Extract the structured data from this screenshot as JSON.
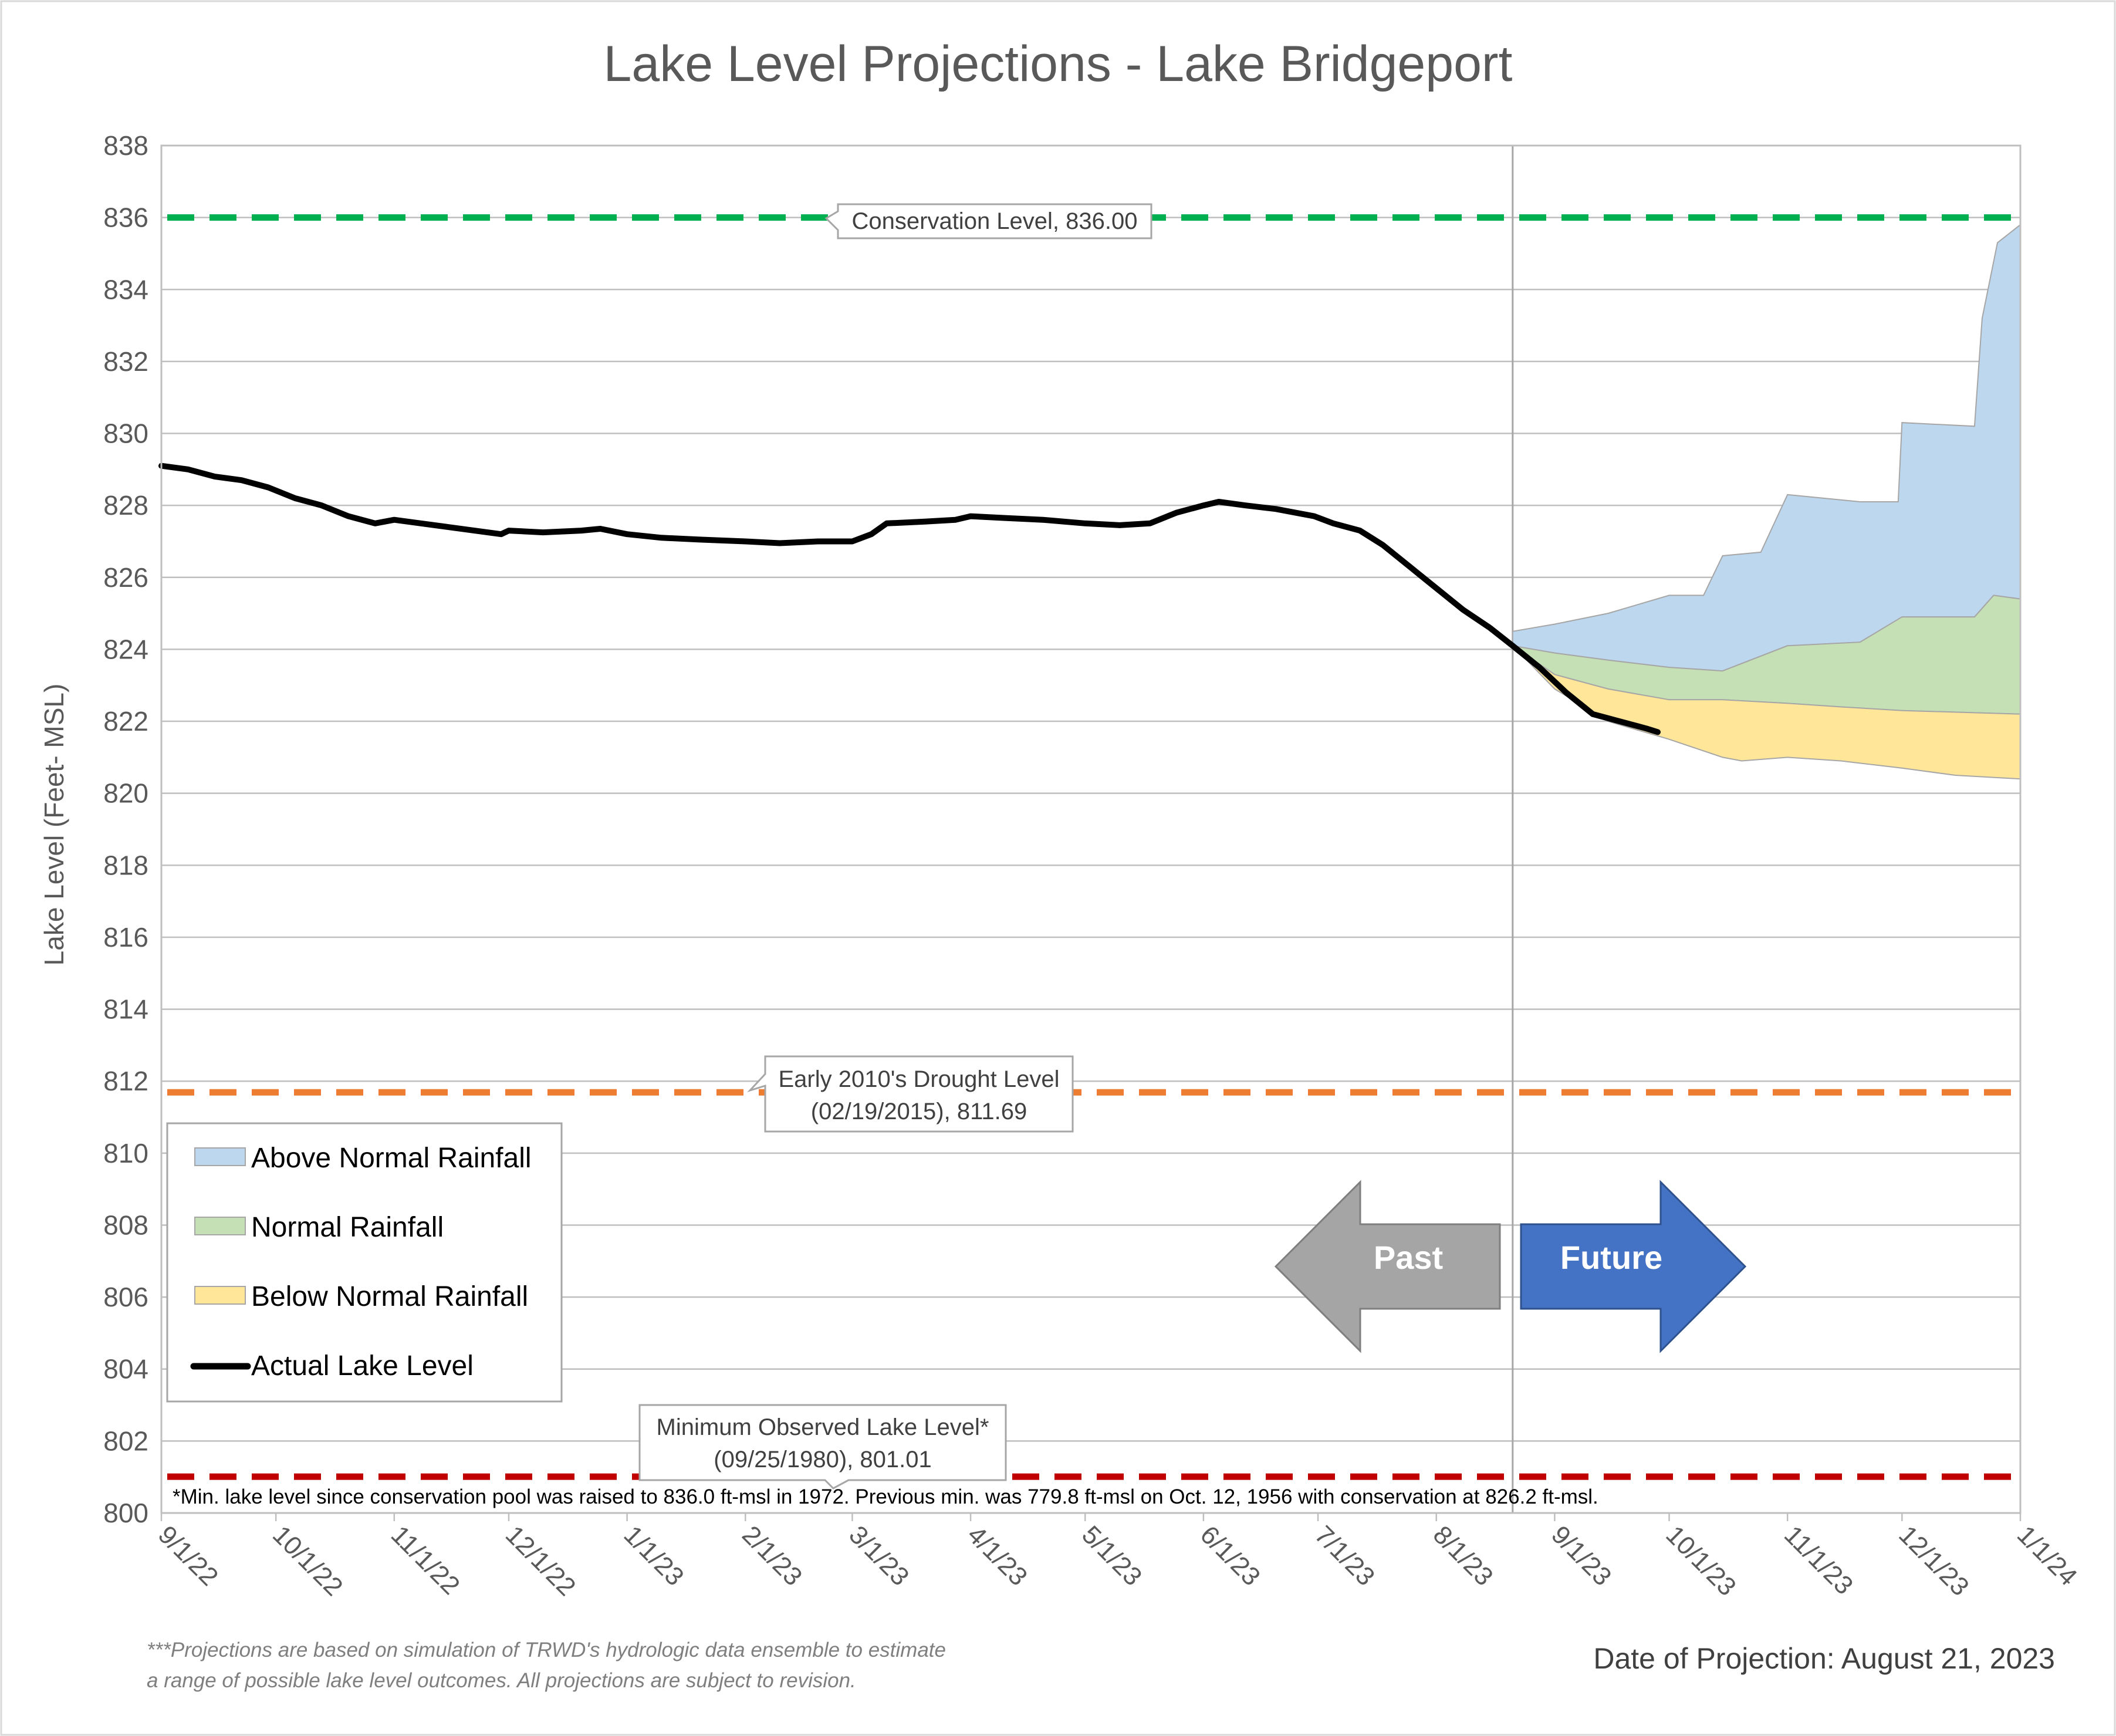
{
  "colors": {
    "above": "#bdd7ee",
    "normal": "#c5e0b4",
    "below": "#ffe699",
    "actual": "#000000",
    "conservation": "#00b050",
    "drought": "#ed7d31",
    "minimum": "#c00000",
    "past_arrow": "#a5a5a5",
    "future_arrow": "#4472c4",
    "grid": "#bfbfbf"
  },
  "chart_data": {
    "type": "area",
    "title": "Lake Level Projections - Lake Bridgeport",
    "xlabel": "",
    "ylabel": "Lake Level (Feet- MSL)",
    "ylim": [
      800,
      838
    ],
    "xlim": [
      "2022-09-01",
      "2024-01-01"
    ],
    "grid": true,
    "legend_position": "left",
    "y_ticks": [
      "800",
      "802",
      "804",
      "806",
      "808",
      "810",
      "812",
      "814",
      "816",
      "818",
      "820",
      "822",
      "824",
      "826",
      "828",
      "830",
      "832",
      "834",
      "836",
      "838"
    ],
    "x_ticks": [
      {
        "date": "2022-09-01",
        "label": "9/1/22"
      },
      {
        "date": "2022-10-01",
        "label": "10/1/22"
      },
      {
        "date": "2022-11-01",
        "label": "11/1/22"
      },
      {
        "date": "2022-12-01",
        "label": "12/1/22"
      },
      {
        "date": "2023-01-01",
        "label": "1/1/23"
      },
      {
        "date": "2023-02-01",
        "label": "2/1/23"
      },
      {
        "date": "2023-03-01",
        "label": "3/1/23"
      },
      {
        "date": "2023-04-01",
        "label": "4/1/23"
      },
      {
        "date": "2023-05-01",
        "label": "5/1/23"
      },
      {
        "date": "2023-06-01",
        "label": "6/1/23"
      },
      {
        "date": "2023-07-01",
        "label": "7/1/23"
      },
      {
        "date": "2023-08-01",
        "label": "8/1/23"
      },
      {
        "date": "2023-09-01",
        "label": "9/1/23"
      },
      {
        "date": "2023-10-01",
        "label": "10/1/23"
      },
      {
        "date": "2023-11-01",
        "label": "11/1/23"
      },
      {
        "date": "2023-12-01",
        "label": "12/1/23"
      },
      {
        "date": "2024-01-01",
        "label": "1/1/24"
      }
    ],
    "projection_start": "2023-08-21",
    "actual_level": {
      "name": "Actual Lake Level",
      "points": [
        [
          "2022-09-01",
          829.1
        ],
        [
          "2022-09-08",
          829.0
        ],
        [
          "2022-09-15",
          828.8
        ],
        [
          "2022-09-22",
          828.7
        ],
        [
          "2022-09-29",
          828.5
        ],
        [
          "2022-10-06",
          828.2
        ],
        [
          "2022-10-13",
          828.0
        ],
        [
          "2022-10-20",
          827.7
        ],
        [
          "2022-10-27",
          827.5
        ],
        [
          "2022-11-01",
          827.6
        ],
        [
          "2022-11-08",
          827.5
        ],
        [
          "2022-11-15",
          827.4
        ],
        [
          "2022-11-22",
          827.3
        ],
        [
          "2022-11-29",
          827.2
        ],
        [
          "2022-12-01",
          827.3
        ],
        [
          "2022-12-10",
          827.25
        ],
        [
          "2022-12-20",
          827.3
        ],
        [
          "2022-12-25",
          827.35
        ],
        [
          "2023-01-01",
          827.2
        ],
        [
          "2023-01-10",
          827.1
        ],
        [
          "2023-01-20",
          827.05
        ],
        [
          "2023-02-01",
          827.0
        ],
        [
          "2023-02-10",
          826.95
        ],
        [
          "2023-02-20",
          827.0
        ],
        [
          "2023-03-01",
          827.0
        ],
        [
          "2023-03-06",
          827.2
        ],
        [
          "2023-03-10",
          827.5
        ],
        [
          "2023-03-20",
          827.55
        ],
        [
          "2023-03-28",
          827.6
        ],
        [
          "2023-04-01",
          827.7
        ],
        [
          "2023-04-10",
          827.65
        ],
        [
          "2023-04-20",
          827.6
        ],
        [
          "2023-05-01",
          827.5
        ],
        [
          "2023-05-10",
          827.45
        ],
        [
          "2023-05-18",
          827.5
        ],
        [
          "2023-05-25",
          827.8
        ],
        [
          "2023-06-01",
          828.0
        ],
        [
          "2023-06-05",
          828.1
        ],
        [
          "2023-06-12",
          828.0
        ],
        [
          "2023-06-20",
          827.9
        ],
        [
          "2023-06-30",
          827.7
        ],
        [
          "2023-07-05",
          827.5
        ],
        [
          "2023-07-12",
          827.3
        ],
        [
          "2023-07-18",
          826.9
        ],
        [
          "2023-07-25",
          826.3
        ],
        [
          "2023-08-01",
          825.7
        ],
        [
          "2023-08-08",
          825.1
        ],
        [
          "2023-08-15",
          824.6
        ],
        [
          "2023-08-21",
          824.1
        ],
        [
          "2023-08-28",
          823.5
        ],
        [
          "2023-09-04",
          822.8
        ],
        [
          "2023-09-11",
          822.2
        ],
        [
          "2023-09-18",
          822.0
        ],
        [
          "2023-09-25",
          821.8
        ],
        [
          "2023-09-28",
          821.7
        ]
      ]
    },
    "series": [
      {
        "name": "Above Normal Rainfall",
        "upper": [
          [
            "2023-08-21",
            824.5
          ],
          [
            "2023-09-01",
            824.7
          ],
          [
            "2023-09-15",
            825.0
          ],
          [
            "2023-10-01",
            825.5
          ],
          [
            "2023-10-10",
            825.5
          ],
          [
            "2023-10-15",
            826.6
          ],
          [
            "2023-10-25",
            826.7
          ],
          [
            "2023-11-01",
            828.3
          ],
          [
            "2023-11-20",
            828.1
          ],
          [
            "2023-11-30",
            828.1
          ],
          [
            "2023-12-01",
            830.3
          ],
          [
            "2023-12-20",
            830.2
          ],
          [
            "2023-12-22",
            833.2
          ],
          [
            "2023-12-26",
            835.3
          ],
          [
            "2024-01-01",
            835.8
          ]
        ],
        "lower": [
          [
            "2023-08-21",
            824.1
          ],
          [
            "2023-09-01",
            823.9
          ],
          [
            "2023-09-15",
            823.7
          ],
          [
            "2023-10-01",
            823.5
          ],
          [
            "2023-10-15",
            823.4
          ],
          [
            "2023-11-01",
            824.1
          ],
          [
            "2023-11-20",
            824.2
          ],
          [
            "2023-12-01",
            824.9
          ],
          [
            "2023-12-20",
            824.9
          ],
          [
            "2023-12-25",
            825.5
          ],
          [
            "2024-01-01",
            825.4
          ]
        ]
      },
      {
        "name": "Normal Rainfall",
        "upper": [
          [
            "2023-08-21",
            824.1
          ],
          [
            "2023-09-01",
            823.9
          ],
          [
            "2023-09-15",
            823.7
          ],
          [
            "2023-10-01",
            823.5
          ],
          [
            "2023-10-15",
            823.4
          ],
          [
            "2023-11-01",
            824.1
          ],
          [
            "2023-11-20",
            824.2
          ],
          [
            "2023-12-01",
            824.9
          ],
          [
            "2023-12-20",
            824.9
          ],
          [
            "2023-12-25",
            825.5
          ],
          [
            "2024-01-01",
            825.4
          ]
        ],
        "lower": [
          [
            "2023-08-21",
            824.1
          ],
          [
            "2023-09-01",
            823.3
          ],
          [
            "2023-09-15",
            822.9
          ],
          [
            "2023-10-01",
            822.6
          ],
          [
            "2023-10-15",
            822.6
          ],
          [
            "2023-11-01",
            822.5
          ],
          [
            "2023-11-15",
            822.4
          ],
          [
            "2023-12-01",
            822.3
          ],
          [
            "2024-01-01",
            822.2
          ]
        ]
      },
      {
        "name": "Below Normal Rainfall",
        "upper": [
          [
            "2023-08-21",
            824.1
          ],
          [
            "2023-09-01",
            823.3
          ],
          [
            "2023-09-15",
            822.9
          ],
          [
            "2023-10-01",
            822.6
          ],
          [
            "2023-10-15",
            822.6
          ],
          [
            "2023-11-01",
            822.5
          ],
          [
            "2023-11-15",
            822.4
          ],
          [
            "2023-12-01",
            822.3
          ],
          [
            "2024-01-01",
            822.2
          ]
        ],
        "lower": [
          [
            "2023-08-21",
            824.1
          ],
          [
            "2023-09-01",
            822.9
          ],
          [
            "2023-09-15",
            822.0
          ],
          [
            "2023-10-01",
            821.5
          ],
          [
            "2023-10-15",
            821.0
          ],
          [
            "2023-10-20",
            820.9
          ],
          [
            "2023-11-01",
            821.0
          ],
          [
            "2023-11-15",
            820.9
          ],
          [
            "2023-12-01",
            820.7
          ],
          [
            "2023-12-15",
            820.5
          ],
          [
            "2024-01-01",
            820.4
          ]
        ]
      }
    ],
    "reference_lines": [
      {
        "name": "conservation",
        "value": 836.0
      },
      {
        "name": "drought",
        "value": 811.69
      },
      {
        "name": "minimum",
        "value": 801.01
      }
    ]
  },
  "callouts": {
    "conservation": "Conservation Level, 836.00",
    "drought_line1": "Early 2010's Drought Level",
    "drought_line2": "(02/19/2015), 811.69",
    "minimum_line1": "Minimum Observed Lake Level*",
    "minimum_line2": "(09/25/1980), 801.01"
  },
  "legend": {
    "above": "Above Normal Rainfall",
    "normal": "Normal Rainfall",
    "below": "Below Normal Rainfall",
    "actual": "Actual Lake Level"
  },
  "arrows": {
    "past": "Past",
    "future": "Future"
  },
  "footnote": "*Min. lake level since conservation pool was raised to 836.0 ft-msl in 1972.  Previous min. was 779.8 ft-msl on Oct. 12, 1956 with conservation at 826.2 ft-msl.",
  "disclaimer": {
    "line1": "***Projections are based on simulation of TRWD's hydrologic data ensemble to estimate",
    "line2": "a range of possible lake level outcomes.  All projections are subject to revision."
  },
  "projection_date": "Date of Projection: August 21, 2023"
}
